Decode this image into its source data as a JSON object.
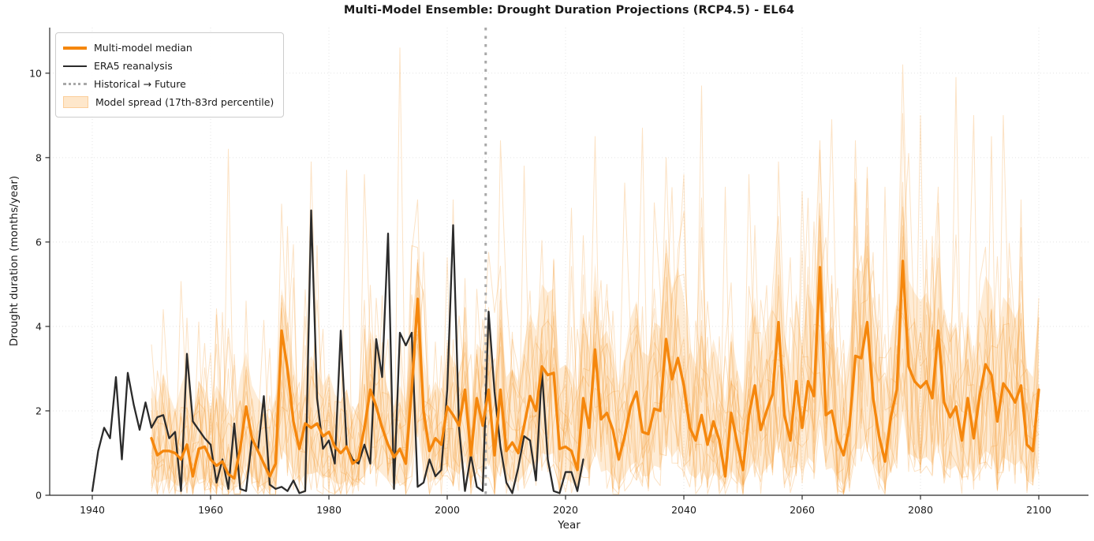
{
  "title": "Multi-Model Ensemble: Drought Duration Projections (RCP4.5) - EL64",
  "colors": {
    "median": "#f5870d",
    "era5": "#2b2b2b",
    "band_fill": "rgba(250,170,70,0.22)",
    "member_line": "rgba(245,160,60,0.30)",
    "grid": "#e4e4e4",
    "transition_line": "#a8a8a8",
    "spine": "#2a2a2a",
    "text": "#1a1a1a"
  },
  "legend": {
    "items": [
      {
        "label": "Multi-model median",
        "swatch": "thick-orange-line"
      },
      {
        "label": "ERA5 reanalysis",
        "swatch": "dark-line"
      },
      {
        "label": "Historical → Future",
        "swatch": "gray-dotted-line"
      },
      {
        "label": "Model spread (17th-83rd percentile)",
        "swatch": "light-orange-patch"
      }
    ]
  },
  "chart_data": {
    "type": "line",
    "title": "Multi-Model Ensemble: Drought Duration Projections (RCP4.5) - EL64",
    "xlabel": "Year",
    "ylabel": "Drought duration (months/year)",
    "x_ticks": [
      1940,
      1960,
      1980,
      2000,
      2020,
      2040,
      2060,
      2080,
      2100
    ],
    "y_ticks": [
      0,
      2,
      4,
      6,
      8,
      10
    ],
    "xlim": [
      1932.8,
      2108.4
    ],
    "ylim": [
      0,
      11.08
    ],
    "grid": true,
    "legend_position": "upper-left",
    "transition_year": 2006.5,
    "series": [
      {
        "name": "ERA5 reanalysis",
        "type": "line",
        "color": "#2b2b2b",
        "start_year": 1940,
        "values": [
          0.1,
          1.05,
          1.6,
          1.35,
          2.8,
          0.85,
          2.9,
          2.15,
          1.55,
          2.2,
          1.6,
          1.85,
          1.9,
          1.35,
          1.5,
          0.1,
          3.35,
          1.75,
          1.55,
          1.35,
          1.2,
          0.3,
          0.85,
          0.15,
          1.7,
          0.15,
          0.1,
          1.35,
          1.05,
          2.35,
          0.25,
          0.15,
          0.2,
          0.1,
          0.35,
          0.05,
          0.1,
          6.75,
          2.3,
          1.1,
          1.3,
          0.75,
          3.9,
          1.15,
          0.85,
          0.75,
          1.2,
          0.75,
          3.7,
          2.8,
          6.2,
          0.15,
          3.85,
          3.55,
          3.85,
          0.2,
          0.3,
          0.85,
          0.45,
          0.6,
          2.5,
          6.4,
          1.6,
          0.1,
          0.95,
          0.2,
          0.1,
          4.35,
          2.45,
          1.15,
          0.3,
          0.05,
          0.65,
          1.4,
          1.3,
          0.35,
          2.95,
          0.85,
          0.1,
          0.05,
          0.55,
          0.55,
          0.1,
          0.85
        ]
      },
      {
        "name": "Multi-model median",
        "type": "line",
        "color": "#f5870d",
        "start_year": 1950,
        "values": [
          1.35,
          0.95,
          1.05,
          1.05,
          1.0,
          0.85,
          1.2,
          0.45,
          1.1,
          1.15,
          0.85,
          0.7,
          0.8,
          0.5,
          0.4,
          1.1,
          2.1,
          1.35,
          1.05,
          0.75,
          0.45,
          0.75,
          3.9,
          3.0,
          1.75,
          1.1,
          1.7,
          1.6,
          1.7,
          1.4,
          1.5,
          1.15,
          1.0,
          1.15,
          0.75,
          0.85,
          1.6,
          2.5,
          2.1,
          1.6,
          1.2,
          0.9,
          1.1,
          0.75,
          2.5,
          4.65,
          2.0,
          1.05,
          1.35,
          1.2,
          2.1,
          1.9,
          1.65,
          2.5,
          0.95,
          2.3,
          1.65,
          2.5,
          0.95,
          2.5,
          1.05,
          1.25,
          1.0,
          1.65,
          2.35,
          2.0,
          3.05,
          2.85,
          2.9,
          1.1,
          1.15,
          1.05,
          0.6,
          2.3,
          1.6,
          3.45,
          1.8,
          1.95,
          1.55,
          0.85,
          1.4,
          2.1,
          2.45,
          1.5,
          1.45,
          2.05,
          2.0,
          3.7,
          2.75,
          3.25,
          2.6,
          1.6,
          1.3,
          1.9,
          1.2,
          1.75,
          1.3,
          0.45,
          1.95,
          1.25,
          0.6,
          1.9,
          2.6,
          1.55,
          2.0,
          2.4,
          4.1,
          1.9,
          1.3,
          2.7,
          1.6,
          2.7,
          2.35,
          5.4,
          1.9,
          2.0,
          1.3,
          0.95,
          1.65,
          3.3,
          3.25,
          4.1,
          2.3,
          1.4,
          0.8,
          1.85,
          2.5,
          5.55,
          3.05,
          2.7,
          2.55,
          2.7,
          2.3,
          3.9,
          2.2,
          1.85,
          2.1,
          1.3,
          2.3,
          1.35,
          2.35,
          3.1,
          2.85,
          1.75,
          2.65,
          2.45,
          2.2,
          2.6,
          1.2,
          1.05,
          2.5
        ]
      },
      {
        "name": "Model spread 17th percentile",
        "type": "band-lower",
        "start_year": 1950,
        "values": [
          0.45,
          0.3,
          0.35,
          0.4,
          0.25,
          0.2,
          0.4,
          0.15,
          0.35,
          0.4,
          0.25,
          0.2,
          0.25,
          0.15,
          0.1,
          0.35,
          0.7,
          0.45,
          0.3,
          0.2,
          0.1,
          0.25,
          1.1,
          0.9,
          0.55,
          0.3,
          0.5,
          0.5,
          0.55,
          0.4,
          0.45,
          0.3,
          0.25,
          0.35,
          0.2,
          0.25,
          0.5,
          0.8,
          0.65,
          0.5,
          0.35,
          0.25,
          0.3,
          0.2,
          0.8,
          1.5,
          0.6,
          0.3,
          0.4,
          0.35,
          0.7,
          0.6,
          0.5,
          0.8,
          0.25,
          0.7,
          0.5,
          0.8,
          0.3,
          0.8,
          0.3,
          0.4,
          0.3,
          0.5,
          0.75,
          0.6,
          1.0,
          0.95,
          1.0,
          0.35,
          0.4,
          0.3,
          0.2,
          0.75,
          0.5,
          1.15,
          0.55,
          0.6,
          0.45,
          0.25,
          0.45,
          0.7,
          0.8,
          0.45,
          0.45,
          0.7,
          0.65,
          1.25,
          0.9,
          1.1,
          0.85,
          0.5,
          0.4,
          0.6,
          0.35,
          0.55,
          0.4,
          0.15,
          0.6,
          0.35,
          0.2,
          0.6,
          0.85,
          0.45,
          0.65,
          0.8,
          1.4,
          0.6,
          0.4,
          0.9,
          0.5,
          0.9,
          0.75,
          1.9,
          0.6,
          0.65,
          0.4,
          0.25,
          0.5,
          1.1,
          1.1,
          1.4,
          0.75,
          0.45,
          0.25,
          0.6,
          0.85,
          1.95,
          1.0,
          0.9,
          0.85,
          0.9,
          0.75,
          1.3,
          0.7,
          0.6,
          0.7,
          0.4,
          0.75,
          0.4,
          0.8,
          1.05,
          0.95,
          0.55,
          0.9,
          0.8,
          0.7,
          0.85,
          0.35,
          0.3,
          0.8
        ]
      },
      {
        "name": "Model spread 83rd percentile",
        "type": "band-upper",
        "start_year": 1950,
        "values": [
          2.6,
          2.2,
          2.9,
          2.4,
          2.0,
          2.6,
          3.0,
          1.9,
          2.7,
          2.5,
          2.1,
          2.6,
          2.3,
          2.0,
          1.8,
          2.8,
          3.4,
          2.6,
          2.3,
          2.1,
          1.8,
          2.4,
          4.9,
          4.2,
          3.1,
          2.3,
          3.0,
          3.3,
          3.0,
          2.6,
          2.9,
          2.4,
          2.2,
          2.5,
          1.9,
          2.2,
          3.2,
          3.9,
          3.5,
          3.0,
          2.5,
          2.1,
          2.6,
          2.2,
          3.9,
          5.6,
          3.3,
          2.3,
          2.7,
          2.4,
          3.5,
          3.2,
          2.9,
          3.8,
          2.1,
          3.6,
          3.4,
          4.3,
          2.7,
          4.4,
          2.8,
          3.0,
          2.7,
          3.6,
          4.3,
          3.9,
          5.0,
          4.8,
          4.9,
          3.0,
          3.1,
          2.9,
          2.4,
          4.3,
          3.5,
          5.5,
          3.7,
          3.9,
          3.4,
          2.6,
          3.3,
          4.2,
          4.6,
          3.4,
          3.3,
          4.1,
          4.0,
          5.9,
          4.9,
          5.4,
          4.7,
          3.5,
          3.1,
          3.9,
          3.0,
          3.7,
          3.1,
          2.2,
          3.9,
          3.0,
          2.4,
          3.9,
          4.7,
          3.4,
          4.0,
          4.5,
          6.3,
          3.8,
          3.1,
          4.8,
          3.5,
          4.8,
          4.4,
          7.0,
          3.8,
          4.0,
          3.1,
          2.6,
          3.6,
          5.4,
          5.3,
          6.2,
          4.3,
          3.3,
          2.5,
          3.8,
          4.6,
          7.1,
          5.1,
          4.8,
          4.6,
          4.8,
          4.3,
          6.0,
          4.2,
          3.8,
          4.1,
          3.1,
          4.3,
          3.2,
          4.4,
          5.2,
          4.9,
          3.7,
          4.7,
          4.5,
          4.2,
          4.6,
          3.0,
          2.8,
          4.5
        ]
      }
    ],
    "ensemble_members": {
      "count": 14,
      "seed": 13,
      "start_year": 1950,
      "end_year": 2100,
      "spikes": [
        [
          1952,
          4.4
        ],
        [
          1956,
          4.2
        ],
        [
          1959,
          3.6
        ],
        [
          1963,
          8.2
        ],
        [
          1966,
          4.6
        ],
        [
          1972,
          6.9
        ],
        [
          1977,
          7.9
        ],
        [
          1983,
          7.7
        ],
        [
          1986,
          7.6
        ],
        [
          1992,
          10.6
        ],
        [
          1995,
          7.0
        ],
        [
          2001,
          7.0
        ],
        [
          2009,
          8.4
        ],
        [
          2013,
          7.8
        ],
        [
          2021,
          6.8
        ],
        [
          2025,
          8.5
        ],
        [
          2030,
          7.4
        ],
        [
          2033,
          8.7
        ],
        [
          2037,
          8.0
        ],
        [
          2040,
          7.6
        ],
        [
          2043,
          9.7
        ],
        [
          2047,
          7.3
        ],
        [
          2051,
          7.6
        ],
        [
          2056,
          7.9
        ],
        [
          2060,
          7.2
        ],
        [
          2063,
          8.4
        ],
        [
          2065,
          8.9
        ],
        [
          2069,
          8.4
        ],
        [
          2071,
          7.5
        ],
        [
          2074,
          7.3
        ],
        [
          2077,
          10.2
        ],
        [
          2078,
          8.1
        ],
        [
          2080,
          9.0
        ],
        [
          2083,
          7.3
        ],
        [
          2086,
          9.9
        ],
        [
          2089,
          9.0
        ],
        [
          2092,
          8.5
        ],
        [
          2094,
          9.0
        ],
        [
          2097,
          7.0
        ]
      ]
    }
  }
}
